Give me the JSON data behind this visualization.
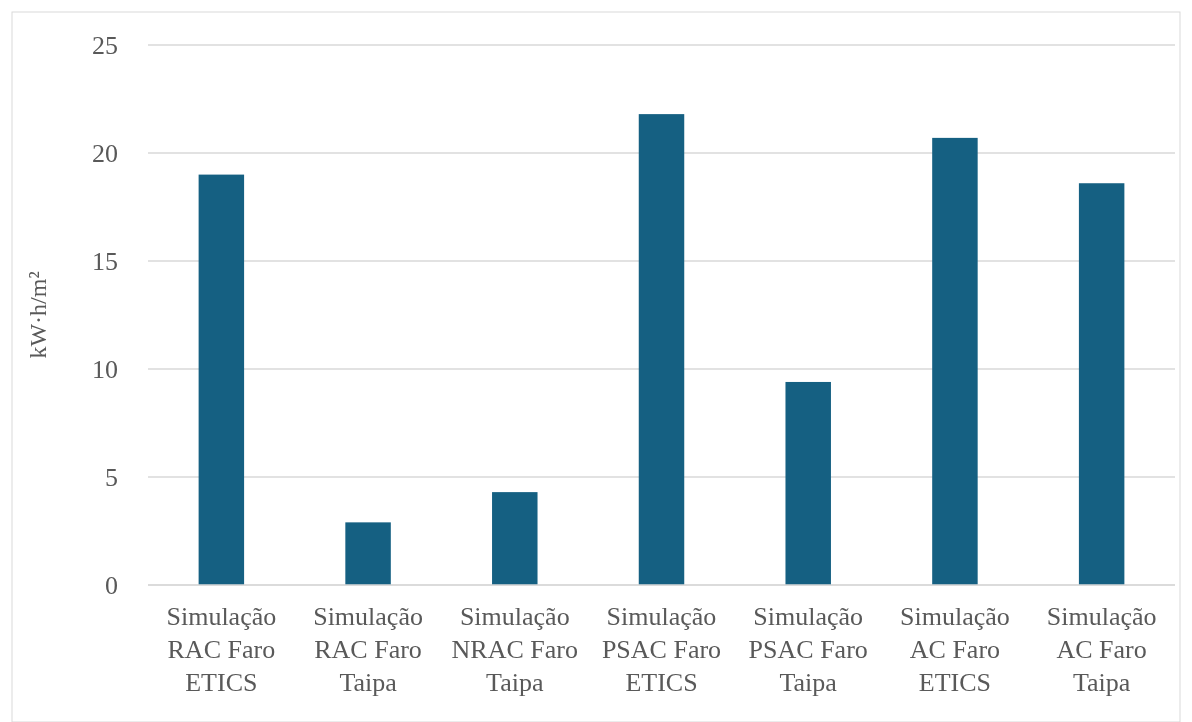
{
  "chart_data": {
    "type": "bar",
    "ylabel": "kW·h/m²",
    "categories": [
      "Simulação RAC Faro ETICS",
      "Simulação RAC Faro Taipa",
      "Simulação NRAC Faro Taipa",
      "Simulação PSAC Faro ETICS",
      "Simulação PSAC Faro Taipa",
      "Simulação AC Faro ETICS",
      "Simulação AC Faro Taipa"
    ],
    "values": [
      19.0,
      2.9,
      4.3,
      21.8,
      9.4,
      20.7,
      18.6
    ],
    "color": "#156082",
    "ylim": [
      0,
      25
    ],
    "yticks": [
      0,
      5,
      10,
      15,
      20,
      25
    ],
    "grid": "y"
  }
}
